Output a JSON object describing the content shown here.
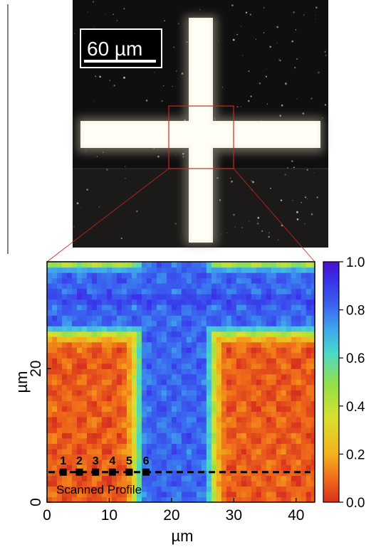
{
  "micrograph": {
    "scale_bar_label": "60 µm"
  },
  "map": {
    "colorbar": {
      "ticks": [
        "1.0",
        "0.8",
        "0.6",
        "0.4",
        "0.2",
        "0.0"
      ],
      "range": [
        0.0,
        1.0
      ],
      "colors": [
        "#d7301f",
        "#f06d1a",
        "#f2b21c",
        "#d8e02d",
        "#8ee04d",
        "#4ad9c9",
        "#3fa6ec",
        "#3a63ef",
        "#3932e8",
        "#4a10cf"
      ]
    },
    "xlabel": "µm",
    "ylabel": "µm",
    "xticks": [
      "0",
      "10",
      "20",
      "30",
      "40"
    ],
    "yticks": [
      "0",
      "20"
    ],
    "points": [
      "1",
      "2",
      "3",
      "4",
      "5",
      "6"
    ],
    "profile_label": "Scanned Profile"
  },
  "chart_data": {
    "type": "heatmap",
    "title": "",
    "xlabel": "µm",
    "ylabel": "µm",
    "xlim": [
      0,
      43
    ],
    "ylim": [
      0,
      36
    ],
    "x_ticks": [
      0,
      10,
      20,
      30,
      40
    ],
    "y_ticks": [
      0,
      20
    ],
    "colorbar_range": [
      0.0,
      1.0
    ],
    "colorbar_ticks": [
      0.0,
      0.2,
      0.4,
      0.6,
      0.8,
      1.0
    ],
    "scan_profile": {
      "y": 4.5,
      "x": [
        0,
        43
      ]
    },
    "points": [
      {
        "label": "1",
        "x": 2.6,
        "y": 4.5
      },
      {
        "label": "2",
        "x": 5.2,
        "y": 4.5
      },
      {
        "label": "3",
        "x": 7.8,
        "y": 4.5
      },
      {
        "label": "4",
        "x": 10.5,
        "y": 4.5
      },
      {
        "label": "5",
        "x": 13.2,
        "y": 4.5
      },
      {
        "label": "6",
        "x": 15.9,
        "y": 4.5
      }
    ]
  }
}
